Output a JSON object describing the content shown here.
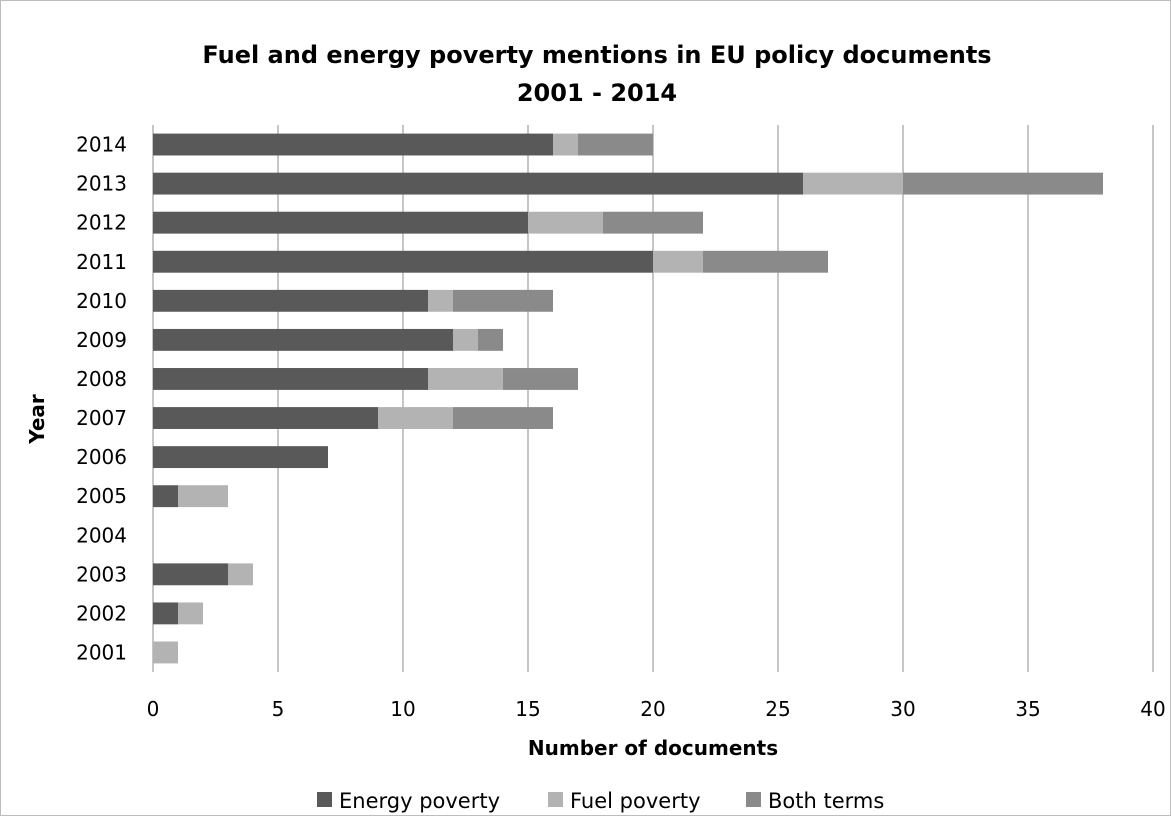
{
  "chart_data": {
    "type": "bar",
    "orientation": "horizontal",
    "stacked": true,
    "title": "Fuel and energy poverty mentions in EU policy documents",
    "subtitle": "2001 - 2014",
    "xlabel": "Number of documents",
    "ylabel": "Year",
    "xlim": [
      0,
      40
    ],
    "x_ticks": [
      "0",
      "5",
      "10",
      "15",
      "20",
      "25",
      "30",
      "35",
      "40"
    ],
    "categories": [
      "2014",
      "2013",
      "2012",
      "2011",
      "2010",
      "2009",
      "2008",
      "2007",
      "2006",
      "2005",
      "2004",
      "2003",
      "2002",
      "2001"
    ],
    "series": [
      {
        "name": "Energy poverty",
        "color": "#595959",
        "values": [
          16,
          26,
          15,
          20,
          11,
          12,
          11,
          9,
          7,
          1,
          0,
          3,
          1,
          0
        ]
      },
      {
        "name": "Fuel poverty",
        "color": "#b3b3b3",
        "values": [
          1,
          4,
          3,
          2,
          1,
          1,
          3,
          3,
          0,
          2,
          0,
          1,
          1,
          1
        ]
      },
      {
        "name": "Both terms",
        "color": "#8a8a8a",
        "values": [
          3,
          8,
          4,
          5,
          4,
          1,
          3,
          4,
          0,
          0,
          0,
          0,
          0,
          0
        ]
      }
    ],
    "grid": {
      "vertical": true,
      "horizontal": false,
      "color": "#8c8c8c"
    },
    "legend_position": "bottom"
  }
}
